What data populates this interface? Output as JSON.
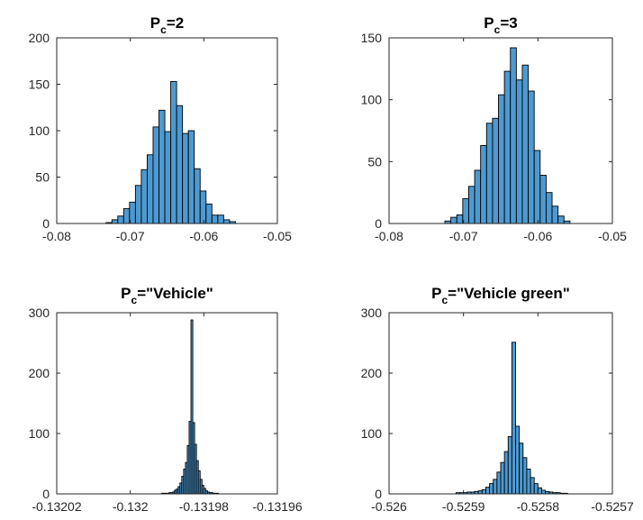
{
  "chart_data": [
    {
      "type": "bar",
      "title": {
        "main": "P",
        "sub": "c",
        "suffix": "=2"
      },
      "bins": [
        -0.0733,
        -0.0725,
        -0.0717,
        -0.0709,
        -0.0701,
        -0.0693,
        -0.0685,
        -0.0677,
        -0.0669,
        -0.0661,
        -0.0653,
        -0.0645,
        -0.0637,
        -0.0629,
        -0.0621,
        -0.0613,
        -0.0605,
        -0.0597,
        -0.0589,
        -0.0581,
        -0.0573,
        -0.0565
      ],
      "values": [
        1,
        4,
        8,
        16,
        23,
        41,
        58,
        74,
        104,
        122,
        99,
        153,
        127,
        97,
        100,
        59,
        35,
        21,
        9,
        9,
        4,
        2
      ],
      "xlim": [
        -0.08,
        -0.05
      ],
      "ylim": [
        0,
        200
      ],
      "xticks": [
        -0.08,
        -0.07,
        -0.06,
        -0.05
      ],
      "xtick_labels": [
        "-0.08",
        "-0.07",
        "-0.06",
        "-0.05"
      ],
      "yticks": [
        0,
        50,
        100,
        150,
        200
      ],
      "ytick_labels": [
        "0",
        "50",
        "100",
        "150",
        "200"
      ]
    },
    {
      "type": "bar",
      "title": {
        "main": "P",
        "sub": "c",
        "suffix": "=3"
      },
      "bins": [
        -0.0725,
        -0.0717,
        -0.0709,
        -0.0701,
        -0.0693,
        -0.0685,
        -0.0677,
        -0.0669,
        -0.0661,
        -0.0653,
        -0.0645,
        -0.0637,
        -0.0629,
        -0.0621,
        -0.0613,
        -0.0605,
        -0.0597,
        -0.0589,
        -0.0581,
        -0.0573,
        -0.0565
      ],
      "values": [
        2,
        5,
        7,
        20,
        30,
        43,
        63,
        81,
        85,
        104,
        123,
        142,
        116,
        128,
        107,
        59,
        39,
        25,
        14,
        6,
        2
      ],
      "xlim": [
        -0.08,
        -0.05
      ],
      "ylim": [
        0,
        150
      ],
      "xticks": [
        -0.08,
        -0.07,
        -0.06,
        -0.05
      ],
      "xtick_labels": [
        "-0.08",
        "-0.07",
        "-0.06",
        "-0.05"
      ],
      "yticks": [
        0,
        50,
        100,
        150
      ],
      "ytick_labels": [
        "0",
        "50",
        "100",
        "150"
      ]
    },
    {
      "type": "bar",
      "title": {
        "main": "P",
        "sub": "c",
        "suffix": "=\"Vehicle\""
      },
      "bins": [
        -0.1319915,
        -0.131991,
        -0.1319905,
        -0.13199,
        -0.1319895,
        -0.131989,
        -0.1319885,
        -0.131988,
        -0.1319875,
        -0.131987,
        -0.1319865,
        -0.131986,
        -0.1319855,
        -0.131985,
        -0.1319845,
        -0.131984,
        -0.1319835,
        -0.131983,
        -0.1319825,
        -0.131982,
        -0.1319815,
        -0.131981,
        -0.1319805,
        -0.13198,
        -0.1319795,
        -0.131979,
        -0.1319785,
        -0.131978,
        -0.1319775,
        -0.131977,
        -0.1319765
      ],
      "values": [
        1,
        1,
        1,
        1,
        2,
        2,
        3,
        6,
        8,
        12,
        18,
        29,
        41,
        52,
        80,
        120,
        288,
        118,
        82,
        55,
        38,
        24,
        14,
        9,
        5,
        3,
        2,
        2,
        1,
        1,
        1
      ],
      "xlim": [
        -0.13202,
        -0.13196
      ],
      "ylim": [
        0,
        300
      ],
      "xticks": [
        -0.13202,
        -0.132,
        -0.13198,
        -0.13196
      ],
      "xtick_labels": [
        "-0.13202",
        "-0.132",
        "-0.13198",
        "-0.13196"
      ],
      "yticks": [
        0,
        100,
        200,
        300
      ],
      "ytick_labels": [
        "0",
        "100",
        "200",
        "300"
      ]
    },
    {
      "type": "bar",
      "title": {
        "main": "P",
        "sub": "c",
        "suffix": "=\"Vehicle green\""
      },
      "bins": [
        -0.52591,
        -0.525905,
        -0.5259,
        -0.525895,
        -0.52589,
        -0.525885,
        -0.52588,
        -0.525875,
        -0.52587,
        -0.525865,
        -0.52586,
        -0.525855,
        -0.52585,
        -0.525845,
        -0.52584,
        -0.525835,
        -0.52583,
        -0.525825,
        -0.52582,
        -0.525815,
        -0.52581,
        -0.525805,
        -0.5258,
        -0.525795,
        -0.52579,
        -0.525785,
        -0.52578,
        -0.525775,
        -0.52577,
        -0.525765
      ],
      "values": [
        2,
        2,
        2,
        3,
        3,
        4,
        5,
        7,
        11,
        17,
        24,
        36,
        52,
        70,
        95,
        251,
        112,
        84,
        60,
        41,
        27,
        17,
        10,
        6,
        4,
        3,
        2,
        2,
        1,
        1
      ],
      "xlim": [
        -0.526,
        -0.5257
      ],
      "ylim": [
        0,
        300
      ],
      "xticks": [
        -0.526,
        -0.5259,
        -0.5258,
        -0.5257
      ],
      "xtick_labels": [
        "-0.526",
        "-0.5259",
        "-0.5258",
        "-0.5257"
      ],
      "yticks": [
        0,
        100,
        200,
        300
      ],
      "ytick_labels": [
        "0",
        "100",
        "200",
        "300"
      ]
    }
  ]
}
